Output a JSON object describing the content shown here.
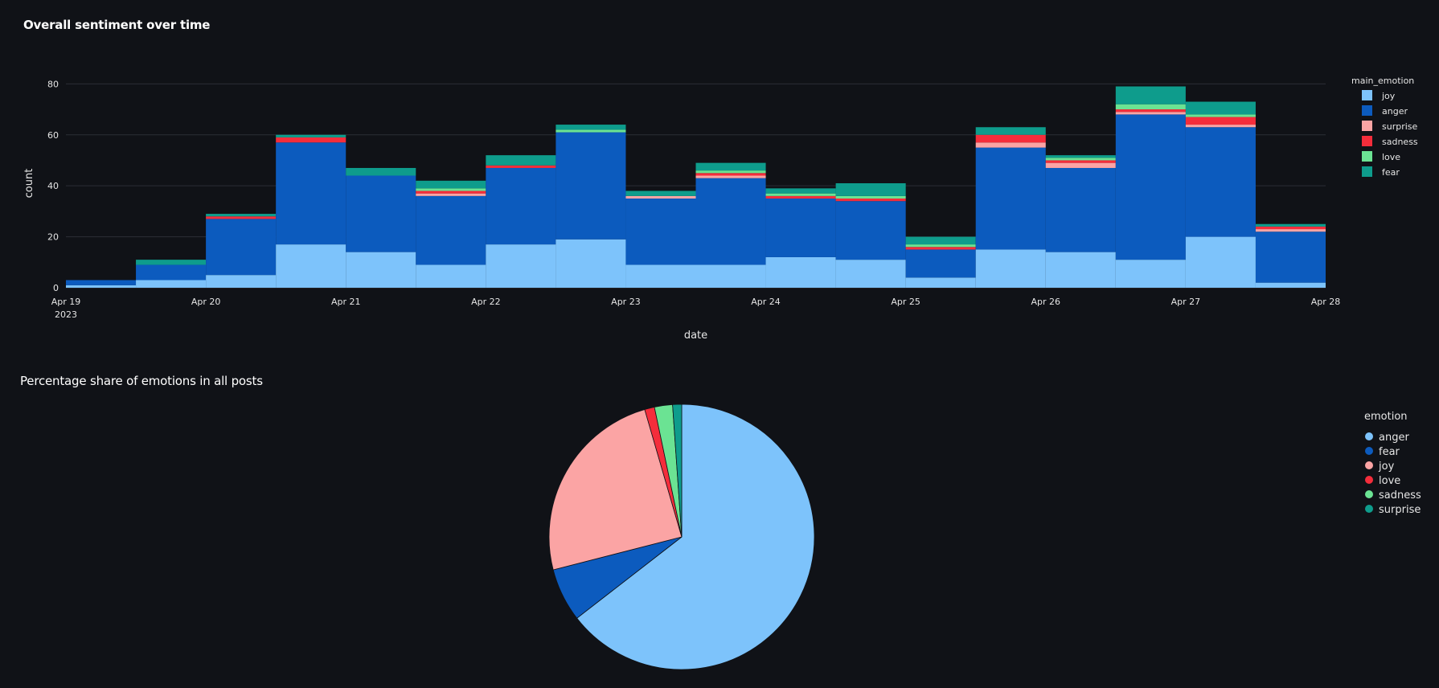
{
  "bar_title": "Overall sentiment over time",
  "pie_title": "Percentage share of emotions in all posts",
  "colors": {
    "joy": "#7dc3fb",
    "anger": "#0c5bbe",
    "surprise": "#fba4a4",
    "sadness": "#f42d3b",
    "love": "#6be393",
    "fear": "#0e9c8c",
    "grid": "#2b2e36",
    "background": "#101217"
  },
  "chart_data": [
    {
      "type": "bar",
      "stacked": true,
      "title": "Overall sentiment over time",
      "xlabel": "date",
      "ylabel": "count",
      "ylim": [
        0,
        82
      ],
      "yticks": [
        0,
        20,
        40,
        60,
        80
      ],
      "xticks": [
        "Apr 19",
        "Apr 20",
        "Apr 21",
        "Apr 22",
        "Apr 23",
        "Apr 24",
        "Apr 25",
        "Apr 26",
        "Apr 27",
        "Apr 28"
      ],
      "xtick_year": "2023",
      "bin_hours": 12,
      "legend_title": "main_emotion",
      "legend_position": "right",
      "grid": true,
      "bins": [
        "Apr 19 00:00",
        "Apr 19 12:00",
        "Apr 20 00:00",
        "Apr 20 12:00",
        "Apr 21 00:00",
        "Apr 21 12:00",
        "Apr 22 00:00",
        "Apr 22 12:00",
        "Apr 23 00:00",
        "Apr 23 12:00",
        "Apr 24 00:00",
        "Apr 24 12:00",
        "Apr 25 00:00",
        "Apr 25 12:00",
        "Apr 26 00:00",
        "Apr 26 12:00",
        "Apr 27 00:00",
        "Apr 27 12:00"
      ],
      "series": [
        {
          "name": "joy",
          "values": [
            1,
            3,
            5,
            17,
            14,
            9,
            17,
            19,
            9,
            9,
            12,
            11,
            4,
            15,
            14,
            11,
            20,
            2
          ]
        },
        {
          "name": "anger",
          "values": [
            2,
            6,
            22,
            40,
            30,
            27,
            30,
            42,
            26,
            34,
            23,
            23,
            11,
            40,
            33,
            57,
            43,
            20
          ]
        },
        {
          "name": "surprise",
          "values": [
            0,
            0,
            0,
            0,
            0,
            1,
            0,
            0,
            1,
            1,
            0,
            0,
            0,
            2,
            2,
            1,
            1,
            1
          ]
        },
        {
          "name": "sadness",
          "values": [
            0,
            0,
            1,
            2,
            0,
            1,
            1,
            0,
            0,
            1,
            1,
            1,
            1,
            3,
            1,
            1,
            3,
            1
          ]
        },
        {
          "name": "love",
          "values": [
            0,
            0,
            0,
            0,
            0,
            1,
            0,
            1,
            0,
            1,
            1,
            1,
            1,
            0,
            1,
            2,
            1,
            0
          ]
        },
        {
          "name": "fear",
          "values": [
            0,
            2,
            1,
            1,
            3,
            3,
            4,
            2,
            2,
            3,
            2,
            5,
            3,
            3,
            1,
            7,
            5,
            1
          ]
        }
      ]
    },
    {
      "type": "pie",
      "title": "Percentage share of emotions in all posts",
      "legend_title": "emotion",
      "legend_position": "right",
      "labels": [
        "anger",
        "fear",
        "joy",
        "love",
        "sadness",
        "surprise"
      ],
      "values": [
        64.5,
        6.5,
        24.5,
        1.2,
        2.2,
        1.1
      ]
    }
  ]
}
